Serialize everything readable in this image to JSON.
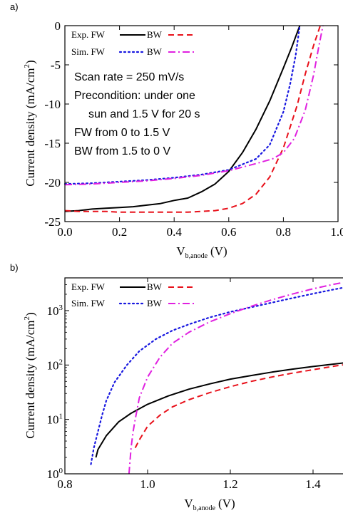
{
  "chart_data": [
    {
      "type": "line",
      "panel_label": "a)",
      "xlabel": "V",
      "xlabel_sub": "b,anode",
      "xlabel_unit": "(V)",
      "ylabel": "Current density (mA/cm",
      "ylabel_sup": "2",
      "ylabel_end": ")",
      "xlim": [
        0.0,
        1.0
      ],
      "ylim": [
        -25,
        0
      ],
      "xticks": [
        0.0,
        0.2,
        0.4,
        0.6,
        0.8,
        1.0
      ],
      "xtick_labels": [
        "0.0",
        "0.2",
        "0.4",
        "0.6",
        "0.8",
        "1.0"
      ],
      "yticks": [
        0,
        -5,
        -10,
        -15,
        -20,
        -25
      ],
      "ytick_labels": [
        "0",
        "-5",
        "-10",
        "-15",
        "-20",
        "-25"
      ],
      "legend": {
        "exp_label": "Exp. FW",
        "sim_label": "Sim. FW",
        "bw_label_1": "BW",
        "bw_label_2": "BW"
      },
      "annotations": [
        "Scan rate = 250 mV/s",
        "Precondition: under one",
        "sun and 1.5 V for 20 s",
        "FW from 0 to 1.5 V",
        "BW from 1.5 to 0 V"
      ],
      "series": [
        {
          "color": "#000000",
          "dash": "solid",
          "x": [
            0.0,
            0.05,
            0.1,
            0.15,
            0.2,
            0.25,
            0.3,
            0.35,
            0.4,
            0.45,
            0.5,
            0.55,
            0.6,
            0.65,
            0.7,
            0.75,
            0.8,
            0.83,
            0.86
          ],
          "y": [
            -23.7,
            -23.6,
            -23.4,
            -23.3,
            -23.2,
            -23.1,
            -22.9,
            -22.7,
            -22.3,
            -22.0,
            -21.2,
            -20.2,
            -18.6,
            -16.2,
            -13.2,
            -9.6,
            -5.4,
            -2.8,
            0.0
          ]
        },
        {
          "color": "#e8101a",
          "dash": "dashed",
          "x": [
            0.0,
            0.05,
            0.1,
            0.15,
            0.2,
            0.25,
            0.3,
            0.35,
            0.4,
            0.45,
            0.5,
            0.55,
            0.6,
            0.65,
            0.7,
            0.75,
            0.8,
            0.85,
            0.88,
            0.91,
            0.935
          ],
          "y": [
            -23.6,
            -23.7,
            -23.7,
            -23.7,
            -23.8,
            -23.8,
            -23.8,
            -23.8,
            -23.8,
            -23.8,
            -23.7,
            -23.6,
            -23.3,
            -22.7,
            -21.5,
            -19.3,
            -15.6,
            -10.2,
            -6.2,
            -2.6,
            0.0
          ]
        },
        {
          "color": "#1818e0",
          "dash": "dotted",
          "x": [
            0.0,
            0.1,
            0.2,
            0.3,
            0.4,
            0.5,
            0.6,
            0.7,
            0.75,
            0.8,
            0.825,
            0.845,
            0.86
          ],
          "y": [
            -20.2,
            -20.1,
            -19.9,
            -19.7,
            -19.4,
            -19.0,
            -18.4,
            -17.0,
            -15.2,
            -11.0,
            -7.4,
            -3.8,
            0.0
          ]
        },
        {
          "color": "#e020e0",
          "dash": "dashdot",
          "x": [
            0.0,
            0.1,
            0.2,
            0.3,
            0.4,
            0.5,
            0.6,
            0.7,
            0.76,
            0.8,
            0.84,
            0.88,
            0.91,
            0.93,
            0.945
          ],
          "y": [
            -20.3,
            -20.2,
            -20.0,
            -19.8,
            -19.5,
            -19.1,
            -18.5,
            -17.6,
            -17.0,
            -16.2,
            -14.4,
            -10.8,
            -6.4,
            -2.6,
            0.0
          ]
        }
      ]
    },
    {
      "type": "line",
      "panel_label": "b)",
      "xlabel": "V",
      "xlabel_sub": "b,anode",
      "xlabel_unit": "(V)",
      "ylabel": "Current density (mA/cm",
      "ylabel_sup": "2",
      "ylabel_end": ")",
      "yscale": "log",
      "xlim": [
        0.8,
        1.5
      ],
      "ylim": [
        1,
        4000
      ],
      "xticks": [
        0.8,
        1.0,
        1.2,
        1.4
      ],
      "xtick_labels": [
        "0.8",
        "1.0",
        "1.2",
        "1.4"
      ],
      "yticks": [
        1,
        10,
        100,
        1000
      ],
      "ytick_base": "10",
      "ytick_exps": [
        "0",
        "1",
        "2",
        "3"
      ],
      "legend": {
        "exp_label": "Exp. FW",
        "sim_label": "Sim. FW",
        "bw_label_1": "BW",
        "bw_label_2": "BW"
      },
      "series": [
        {
          "color": "#000000",
          "dash": "solid",
          "x": [
            0.875,
            0.88,
            0.9,
            0.93,
            0.96,
            1.0,
            1.05,
            1.1,
            1.15,
            1.2,
            1.25,
            1.3,
            1.35,
            1.4,
            1.45,
            1.5
          ],
          "y": [
            2.0,
            2.8,
            5.0,
            9.0,
            13.0,
            19.0,
            27.0,
            36.0,
            45.0,
            55.0,
            64.0,
            74.0,
            84.0,
            94.0,
            104.0,
            115.0
          ]
        },
        {
          "color": "#e8101a",
          "dash": "dashed",
          "x": [
            0.97,
            0.98,
            1.0,
            1.03,
            1.06,
            1.1,
            1.15,
            1.2,
            1.25,
            1.3,
            1.35,
            1.4,
            1.45,
            1.5
          ],
          "y": [
            3.0,
            4.2,
            7.5,
            12.0,
            17.0,
            23.0,
            31.0,
            40.0,
            50.0,
            60.0,
            71.0,
            82.0,
            95.0,
            108.0
          ]
        },
        {
          "color": "#1818e0",
          "dash": "dotted",
          "x": [
            0.863,
            0.87,
            0.88,
            0.89,
            0.9,
            0.92,
            0.95,
            0.98,
            1.02,
            1.06,
            1.1,
            1.15,
            1.2,
            1.25,
            1.3,
            1.35,
            1.4,
            1.45,
            1.5
          ],
          "y": [
            1.5,
            3.0,
            6.0,
            12.0,
            22.0,
            48.0,
            100.0,
            180.0,
            300.0,
            430.0,
            560.0,
            750.0,
            950.0,
            1150.0,
            1400.0,
            1700.0,
            2050.0,
            2450.0,
            2900.0
          ]
        },
        {
          "color": "#e020e0",
          "dash": "dashdot",
          "x": [
            0.955,
            0.96,
            0.965,
            0.97,
            0.98,
            1.0,
            1.03,
            1.06,
            1.1,
            1.15,
            1.2,
            1.25,
            1.3,
            1.35,
            1.4,
            1.45,
            1.5
          ],
          "y": [
            1.0,
            3.0,
            6.0,
            10.0,
            25.0,
            60.0,
            140.0,
            250.0,
            400.0,
            620.0,
            880.0,
            1200.0,
            1580.0,
            2020.0,
            2520.0,
            3050.0,
            3600.0
          ]
        }
      ]
    }
  ]
}
